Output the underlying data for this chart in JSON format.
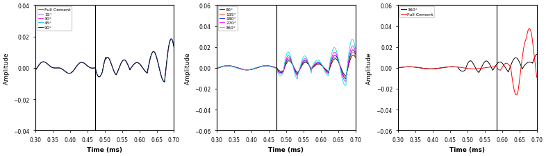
{
  "xlim": [
    0.3,
    0.7
  ],
  "xlabel": "Time (ms)",
  "ylabel": "Amplitude",
  "vline_x_ab": 0.473,
  "vline_x_c": 0.585,
  "plot1": {
    "ylim": [
      -0.04,
      0.04
    ],
    "yticks": [
      -0.04,
      -0.02,
      0.0,
      0.02,
      0.04
    ],
    "legend": [
      "Full Cement",
      "15°",
      "30°",
      "45°",
      "90°"
    ],
    "colors": [
      "#FF0000",
      "#8080FF",
      "#FF00FF",
      "#00CCCC",
      "#000000"
    ]
  },
  "plot2": {
    "ylim": [
      -0.06,
      0.06
    ],
    "yticks": [
      -0.06,
      -0.04,
      -0.02,
      0.0,
      0.02,
      0.04,
      0.06
    ],
    "legend": [
      "90°",
      "135°",
      "180°",
      "270°",
      "360°"
    ],
    "colors": [
      "#000000",
      "#FF4500",
      "#0000CC",
      "#FF00FF",
      "#00DDDD"
    ]
  },
  "plot3": {
    "ylim": [
      -0.06,
      0.06
    ],
    "yticks": [
      -0.06,
      -0.04,
      -0.02,
      0.0,
      0.02,
      0.04,
      0.06
    ],
    "legend": [
      "360°",
      "Full Cement"
    ],
    "colors": [
      "#000000",
      "#FF0000"
    ]
  }
}
